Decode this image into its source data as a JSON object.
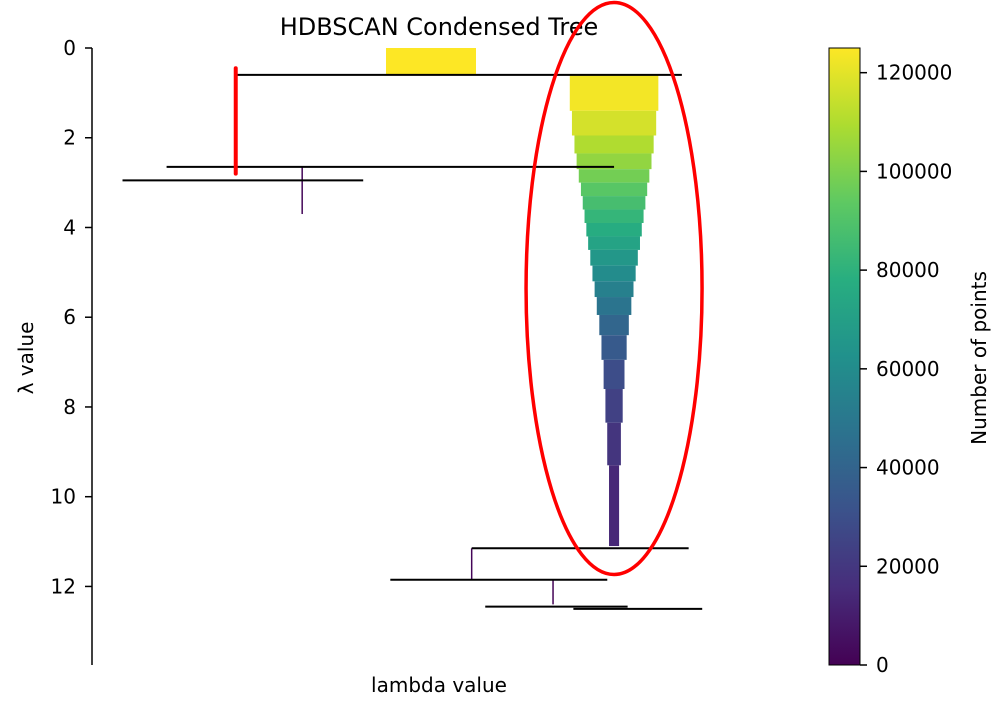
{
  "chart_data": {
    "type": "condensed-tree",
    "title": "HDBSCAN Condensed Tree",
    "xlabel": "lambda value",
    "ylabel": "λ value",
    "ylim": [
      0,
      13.7
    ],
    "y_inverted": true,
    "y_ticks": [
      "0",
      "2",
      "4",
      "6",
      "8",
      "10",
      "12"
    ],
    "colorbar": {
      "label": "Number of points",
      "colormap": "viridis",
      "range": [
        0,
        125000
      ],
      "ticks": [
        "0",
        "20000",
        "40000",
        "60000",
        "80000",
        "100000",
        "120000"
      ]
    },
    "root_block": {
      "lambda_start": 0,
      "lambda_end": 0.6,
      "points": 125000
    },
    "split_lines": [
      {
        "lambda": 0.6,
        "from": 0.5,
        "to": 0.87
      },
      {
        "lambda": 2.65,
        "from": 0.26,
        "to": 0.77
      },
      {
        "lambda": 2.95,
        "from": 0.2,
        "to": 0.4
      },
      {
        "lambda": 11.15,
        "from": 0.6,
        "to": 0.88
      },
      {
        "lambda": 11.85,
        "from": 0.56,
        "to": 0.76
      },
      {
        "lambda": 12.45,
        "from": 0.64,
        "to": 0.79
      },
      {
        "lambda": 12.5,
        "from": 0.8,
        "to": 0.9
      }
    ],
    "thin_branches": [
      {
        "lambda_start": 2.65,
        "lambda_end": 3.7,
        "points": 2000
      },
      {
        "lambda_start": 11.15,
        "lambda_end": 11.85,
        "points": 1500
      },
      {
        "lambda_start": 11.85,
        "lambda_end": 12.4,
        "points": 1200
      }
    ],
    "large_cluster": {
      "lambda_start": 0.6,
      "lambda_end": 11.1,
      "segments": [
        {
          "lambda_start": 0.6,
          "lambda_end": 1.4,
          "points": 123000
        },
        {
          "lambda_start": 1.4,
          "lambda_end": 1.95,
          "points": 117000
        },
        {
          "lambda_start": 1.95,
          "lambda_end": 2.35,
          "points": 110000
        },
        {
          "lambda_start": 2.35,
          "lambda_end": 2.7,
          "points": 104000
        },
        {
          "lambda_start": 2.7,
          "lambda_end": 3.0,
          "points": 98000
        },
        {
          "lambda_start": 3.0,
          "lambda_end": 3.3,
          "points": 92000
        },
        {
          "lambda_start": 3.3,
          "lambda_end": 3.6,
          "points": 87000
        },
        {
          "lambda_start": 3.6,
          "lambda_end": 3.9,
          "points": 82000
        },
        {
          "lambda_start": 3.9,
          "lambda_end": 4.2,
          "points": 77000
        },
        {
          "lambda_start": 4.2,
          "lambda_end": 4.5,
          "points": 72000
        },
        {
          "lambda_start": 4.5,
          "lambda_end": 4.85,
          "points": 66000
        },
        {
          "lambda_start": 4.85,
          "lambda_end": 5.2,
          "points": 60000
        },
        {
          "lambda_start": 5.2,
          "lambda_end": 5.55,
          "points": 54000
        },
        {
          "lambda_start": 5.55,
          "lambda_end": 5.95,
          "points": 48000
        },
        {
          "lambda_start": 5.95,
          "lambda_end": 6.4,
          "points": 41000
        },
        {
          "lambda_start": 6.4,
          "lambda_end": 6.95,
          "points": 35000
        },
        {
          "lambda_start": 6.95,
          "lambda_end": 7.6,
          "points": 29000
        },
        {
          "lambda_start": 7.6,
          "lambda_end": 8.35,
          "points": 24000
        },
        {
          "lambda_start": 8.35,
          "lambda_end": 9.3,
          "points": 19000
        },
        {
          "lambda_start": 9.3,
          "lambda_end": 11.1,
          "points": 14000
        }
      ]
    },
    "annotations": [
      {
        "shape": "ellipse",
        "color": "#ff0000",
        "highlights": "large_cluster"
      },
      {
        "shape": "vertical-mark",
        "color": "#ff0000",
        "lambda_start": 0.45,
        "lambda_end": 2.8
      }
    ]
  }
}
